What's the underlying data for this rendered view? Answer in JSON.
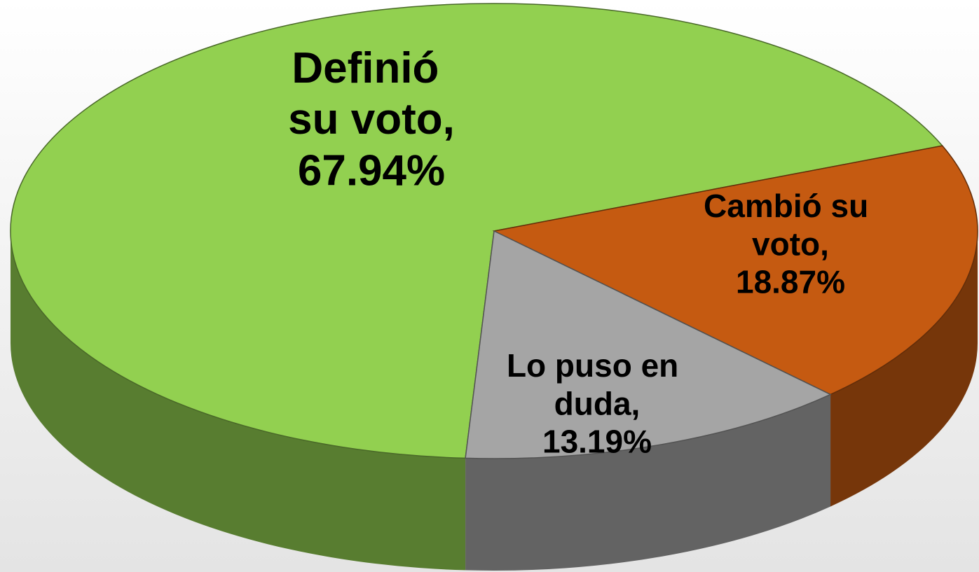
{
  "chart_data": {
    "type": "pie",
    "categories": [
      "Definió su voto,",
      "Cambió su voto,",
      "Lo puso en duda,"
    ],
    "values": [
      67.94,
      18.87,
      13.19
    ],
    "value_labels": [
      "67.94%",
      "18.87%",
      "13.19%"
    ],
    "colors": [
      "#92d050",
      "#c55a11",
      "#a5a5a5"
    ]
  }
}
